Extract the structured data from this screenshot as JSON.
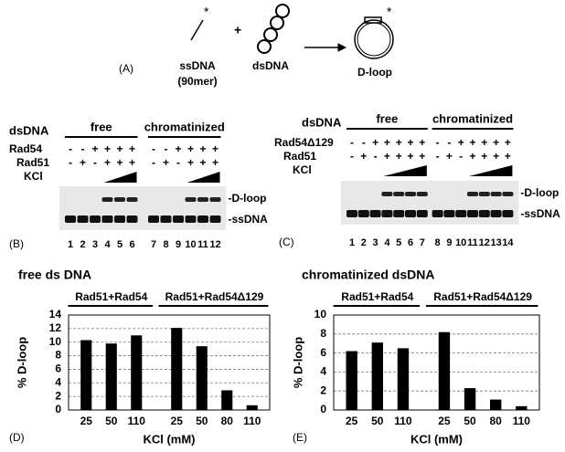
{
  "panel_a": {
    "label": "(A)",
    "ssdna": "ssDNA",
    "ssdna_length": "(90mer)",
    "dsdna": "dsDNA",
    "dloop": "D-loop",
    "plus": "+"
  },
  "panel_b": {
    "label": "(B)",
    "dsdna": "dsDNA",
    "groups": [
      "free",
      "chromatinized"
    ],
    "rows": [
      {
        "label": "Rad54",
        "signs": [
          "-",
          "-",
          "+",
          "+",
          "+",
          "+",
          "-",
          "-",
          "+",
          "+",
          "+",
          "+"
        ]
      },
      {
        "label": "Rad51",
        "signs": [
          "-",
          "+",
          "-",
          "+",
          "+",
          "+",
          "-",
          "+",
          "-",
          "+",
          "+",
          "+"
        ]
      }
    ],
    "kcl": "KCl",
    "band_labels": [
      "-D-loop",
      "-ssDNA"
    ],
    "lanes": [
      1,
      2,
      3,
      4,
      5,
      6,
      7,
      8,
      9,
      10,
      11,
      12
    ]
  },
  "panel_c": {
    "label": "(C)",
    "dsdna": "dsDNA",
    "groups": [
      "free",
      "chromatinized"
    ],
    "rows": [
      {
        "label": "Rad54Δ129",
        "signs": [
          "-",
          "-",
          "+",
          "+",
          "+",
          "+",
          "+",
          "-",
          "-",
          "+",
          "+",
          "+",
          "+",
          "+"
        ]
      },
      {
        "label": "Rad51",
        "signs": [
          "-",
          "+",
          "-",
          "+",
          "+",
          "+",
          "+",
          "-",
          "+",
          "-",
          "+",
          "+",
          "+",
          "+"
        ]
      }
    ],
    "kcl": "KCl",
    "band_labels": [
      "-D-loop",
      "-ssDNA"
    ],
    "lanes": [
      1,
      2,
      3,
      4,
      5,
      6,
      7,
      8,
      9,
      10,
      11,
      12,
      13,
      14
    ]
  },
  "chart_data": [
    {
      "type": "bar",
      "panel": "(D)",
      "title": "free ds DNA",
      "ylabel": "% D-loop",
      "xlabel": "KCl (mM)",
      "color": "#000000",
      "groups": [
        {
          "name": "Rad51+Rad54",
          "categories": [
            "25",
            "50",
            "110"
          ],
          "values": [
            10.3,
            9.8,
            11
          ]
        },
        {
          "name": "Rad51+Rad54Δ129",
          "categories": [
            "25",
            "50",
            "80",
            "110"
          ],
          "values": [
            12.1,
            9.4,
            2.9,
            0.7
          ]
        }
      ],
      "ylim": [
        0,
        14
      ],
      "yticks": [
        0,
        2,
        4,
        6,
        8,
        10,
        12,
        14
      ],
      "grid": true
    },
    {
      "type": "bar",
      "panel": "(E)",
      "title": "chromatinized dsDNA",
      "ylabel": "% D-loop",
      "xlabel": "KCl (mM)",
      "color": "#000000",
      "groups": [
        {
          "name": "Rad51+Rad54",
          "categories": [
            "25",
            "50",
            "110"
          ],
          "values": [
            6.2,
            7.1,
            6.5
          ]
        },
        {
          "name": "Rad51+Rad54Δ129",
          "categories": [
            "25",
            "50",
            "80",
            "110"
          ],
          "values": [
            8.2,
            2.3,
            1.1,
            0.4
          ]
        }
      ],
      "ylim": [
        0,
        10
      ],
      "yticks": [
        0,
        2,
        4,
        6,
        8,
        10
      ],
      "grid": true
    }
  ]
}
